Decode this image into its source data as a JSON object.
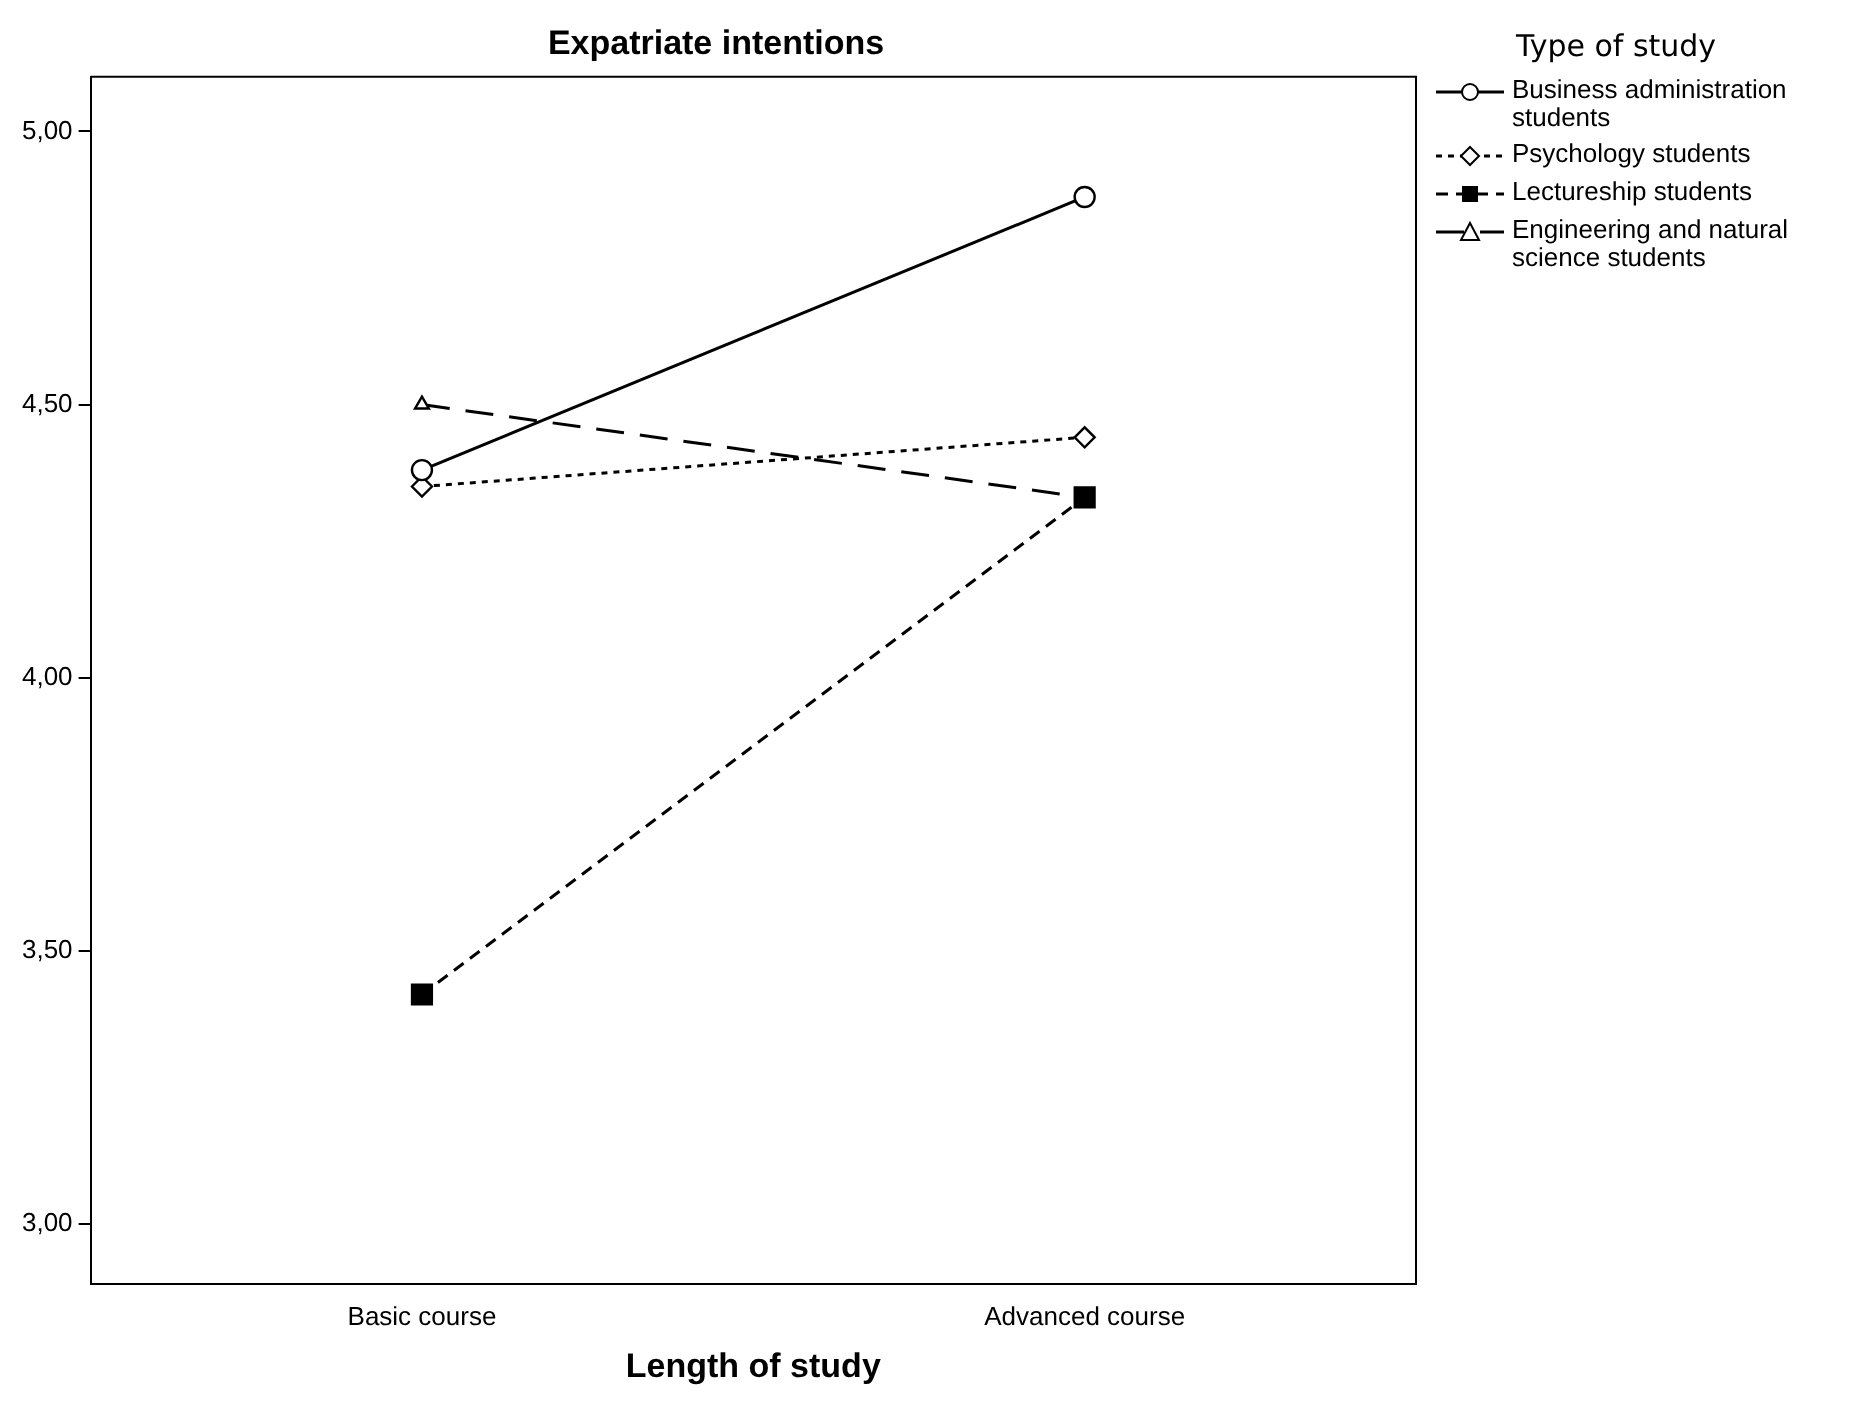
{
  "chart_data": {
    "type": "line",
    "title": "Expatriate intentions",
    "xlabel": "Length of study",
    "legend_title": "Type of study",
    "categories": [
      "Basic course",
      "Advanced course"
    ],
    "series": [
      {
        "name": "Business administration students",
        "color": "#000000",
        "values": [
          4.38,
          4.88
        ],
        "marker": "circle",
        "line_style": "solid"
      },
      {
        "name": "Psychology students",
        "color": "#000000",
        "values": [
          4.35,
          4.44
        ],
        "marker": "diamond",
        "line_style": "dotted"
      },
      {
        "name": "Lectureship students",
        "color": "#000000",
        "values": [
          3.42,
          4.33
        ],
        "marker": "square",
        "line_style": "dashed"
      },
      {
        "name": "Engineering and natural science students",
        "color": "#000000",
        "values": [
          4.5,
          4.33
        ],
        "marker": "triangle",
        "line_style": "longdash"
      }
    ],
    "ylim": [
      2.89,
      5.1
    ],
    "yticks": [
      {
        "value": 3,
        "label": "3,00"
      },
      {
        "value": 3.5,
        "label": "3,50"
      },
      {
        "value": 4,
        "label": "4,00"
      },
      {
        "value": 4.5,
        "label": "4,50"
      },
      {
        "value": 5,
        "label": "5,00"
      }
    ],
    "grid": false,
    "legend": "right"
  }
}
